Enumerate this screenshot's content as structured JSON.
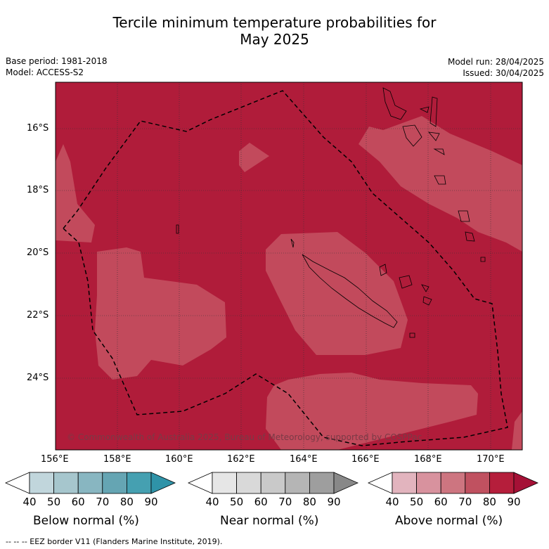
{
  "title_line1": "Tercile minimum temperature probabilities for",
  "title_line2": "May 2025",
  "base_period": "Base period: 1981-2018",
  "model": "Model: ACCESS-S2",
  "model_run": "Model run: 28/04/2025",
  "issued": "Issued: 30/04/2025",
  "copyright": "© Commonwealth of Australia 2025, Bureau of Meteorology, supported by COSPPac",
  "lon_ticks": [
    "156°E",
    "158°E",
    "160°E",
    "162°E",
    "164°E",
    "166°E",
    "168°E",
    "170°E"
  ],
  "lat_ticks": [
    "16°S",
    "18°S",
    "20°S",
    "22°S",
    "24°S"
  ],
  "colorbars": [
    {
      "label": "Below normal (%)",
      "ticks": [
        "40",
        "50",
        "60",
        "70",
        "80",
        "90"
      ],
      "colors": [
        "#ffffff",
        "#c1d6dc",
        "#a6c6cd",
        "#88b6c1",
        "#65a5b3",
        "#45a0b1",
        "#2f93a8"
      ]
    },
    {
      "label": "Near normal (%)",
      "ticks": [
        "40",
        "50",
        "60",
        "70",
        "80",
        "90"
      ],
      "colors": [
        "#ffffff",
        "#e6e6e6",
        "#d9d9d9",
        "#c9c9c9",
        "#b5b5b5",
        "#9e9e9e",
        "#888888"
      ]
    },
    {
      "label": "Above normal (%)",
      "ticks": [
        "40",
        "50",
        "60",
        "70",
        "80",
        "90"
      ],
      "colors": [
        "#ffffff",
        "#e2b4be",
        "#d8929e",
        "#cd7580",
        "#c05160",
        "#b51e3b",
        "#a51136"
      ]
    }
  ],
  "footer": "--  --  -- EEZ border V11 (Flanders Marine Institute, 2019).",
  "map_colors": {
    "base": "#b01c3a",
    "light": "#c24a5c"
  }
}
